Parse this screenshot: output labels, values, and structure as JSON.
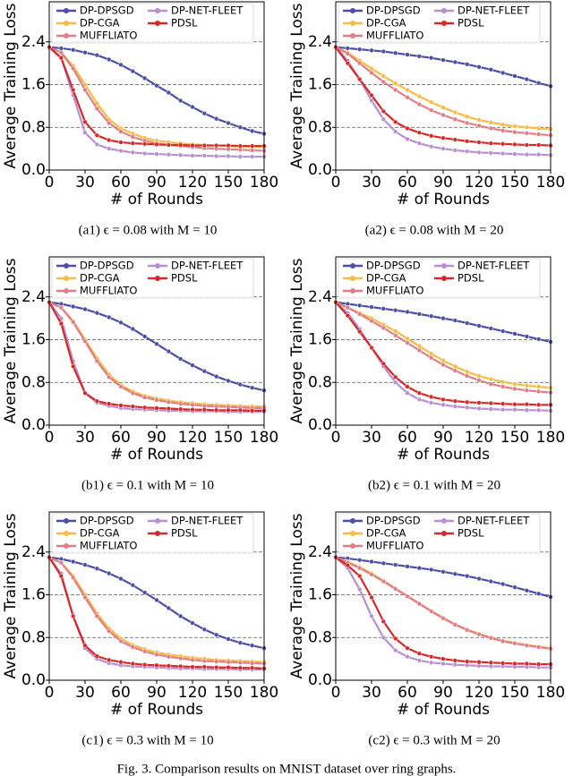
{
  "caption": "Fig. 3. Comparison results on MNIST dataset over ring graphs.",
  "chart_data": [
    {
      "type": "line",
      "caption": "(a1) ϵ = 0.08 with M = 10",
      "x_label": "# of Rounds",
      "y_label": "Average Training Loss",
      "x": [
        0,
        10,
        20,
        30,
        40,
        50,
        60,
        70,
        80,
        90,
        100,
        110,
        120,
        130,
        140,
        150,
        160,
        170,
        180
      ],
      "xlim": [
        0,
        180
      ],
      "xticks": [
        0,
        30,
        60,
        90,
        120,
        150,
        180
      ],
      "ylim": [
        0,
        3.15
      ],
      "yticks": [
        {
          "value": 0,
          "label": "0.0"
        },
        0.8,
        1.6,
        2.4
      ],
      "grid": true,
      "legend": "upper left",
      "series": [
        {
          "name": "DP-DPSGD",
          "color": "#4b4fa6",
          "values": [
            2.3,
            2.28,
            2.25,
            2.2,
            2.15,
            2.07,
            1.97,
            1.85,
            1.72,
            1.58,
            1.45,
            1.3,
            1.18,
            1.06,
            0.96,
            0.88,
            0.8,
            0.73,
            0.68
          ]
        },
        {
          "name": "DP-CGA",
          "color": "#f5bb45",
          "values": [
            2.3,
            2.2,
            1.95,
            1.6,
            1.25,
            0.95,
            0.78,
            0.68,
            0.6,
            0.55,
            0.52,
            0.5,
            0.48,
            0.47,
            0.46,
            0.45,
            0.44,
            0.44,
            0.43
          ]
        },
        {
          "name": "MUFFLIATO",
          "color": "#e07d86",
          "values": [
            2.3,
            2.2,
            1.9,
            1.5,
            1.15,
            0.88,
            0.72,
            0.62,
            0.55,
            0.5,
            0.47,
            0.45,
            0.43,
            0.41,
            0.4,
            0.39,
            0.38,
            0.37,
            0.36
          ]
        },
        {
          "name": "DP-NET-FLEET",
          "color": "#b890d2",
          "values": [
            2.3,
            2.1,
            1.4,
            0.7,
            0.48,
            0.4,
            0.36,
            0.33,
            0.31,
            0.3,
            0.29,
            0.28,
            0.27,
            0.27,
            0.26,
            0.26,
            0.25,
            0.25,
            0.25
          ]
        },
        {
          "name": "PDSL",
          "color": "#d42a2a",
          "values": [
            2.3,
            2.1,
            1.5,
            0.9,
            0.65,
            0.56,
            0.52,
            0.5,
            0.49,
            0.48,
            0.47,
            0.47,
            0.46,
            0.46,
            0.46,
            0.46,
            0.45,
            0.45,
            0.45
          ]
        }
      ]
    },
    {
      "type": "line",
      "caption": "(a2) ϵ = 0.08 with M = 20",
      "x_label": "# of Rounds",
      "y_label": "Average Training Loss",
      "x": [
        0,
        10,
        20,
        30,
        40,
        50,
        60,
        70,
        80,
        90,
        100,
        110,
        120,
        130,
        140,
        150,
        160,
        170,
        180
      ],
      "xlim": [
        0,
        180
      ],
      "xticks": [
        0,
        30,
        60,
        90,
        120,
        150,
        180
      ],
      "ylim": [
        0,
        3.15
      ],
      "yticks": [
        {
          "value": 0,
          "label": "0.0"
        },
        0.8,
        1.6,
        2.4
      ],
      "grid": true,
      "legend": "upper left",
      "series": [
        {
          "name": "DP-DPSGD",
          "color": "#4b4fa6",
          "values": [
            2.3,
            2.28,
            2.26,
            2.24,
            2.22,
            2.19,
            2.16,
            2.13,
            2.1,
            2.06,
            2.02,
            1.98,
            1.93,
            1.88,
            1.82,
            1.76,
            1.7,
            1.63,
            1.57
          ]
        },
        {
          "name": "DP-CGA",
          "color": "#f5bb45",
          "values": [
            2.3,
            2.2,
            2.05,
            1.9,
            1.76,
            1.62,
            1.5,
            1.38,
            1.27,
            1.17,
            1.08,
            1.0,
            0.94,
            0.89,
            0.85,
            0.82,
            0.8,
            0.78,
            0.77
          ]
        },
        {
          "name": "MUFFLIATO",
          "color": "#e07d86",
          "values": [
            2.3,
            2.18,
            2.0,
            1.82,
            1.65,
            1.5,
            1.36,
            1.23,
            1.12,
            1.03,
            0.95,
            0.88,
            0.83,
            0.78,
            0.74,
            0.71,
            0.69,
            0.67,
            0.65
          ]
        },
        {
          "name": "DP-NET-FLEET",
          "color": "#b890d2",
          "values": [
            2.3,
            2.05,
            1.7,
            1.3,
            0.95,
            0.72,
            0.58,
            0.5,
            0.44,
            0.4,
            0.37,
            0.35,
            0.33,
            0.32,
            0.31,
            0.3,
            0.29,
            0.29,
            0.28
          ]
        },
        {
          "name": "PDSL",
          "color": "#d42a2a",
          "values": [
            2.3,
            2.0,
            1.7,
            1.4,
            1.1,
            0.9,
            0.78,
            0.7,
            0.64,
            0.6,
            0.57,
            0.54,
            0.52,
            0.5,
            0.49,
            0.48,
            0.47,
            0.47,
            0.46
          ]
        }
      ]
    },
    {
      "type": "line",
      "caption": "(b1) ϵ = 0.1 with M = 10",
      "x_label": "# of Rounds",
      "y_label": "Average Training Loss",
      "x": [
        0,
        10,
        20,
        30,
        40,
        50,
        60,
        70,
        80,
        90,
        100,
        110,
        120,
        130,
        140,
        150,
        160,
        170,
        180
      ],
      "xlim": [
        0,
        180
      ],
      "xticks": [
        0,
        30,
        60,
        90,
        120,
        150,
        180
      ],
      "ylim": [
        0,
        3.15
      ],
      "yticks": [
        {
          "value": 0,
          "label": "0.0"
        },
        0.8,
        1.6,
        2.4
      ],
      "grid": true,
      "legend": "upper left",
      "series": [
        {
          "name": "DP-DPSGD",
          "color": "#4b4fa6",
          "values": [
            2.3,
            2.27,
            2.22,
            2.17,
            2.1,
            2.02,
            1.92,
            1.8,
            1.66,
            1.52,
            1.38,
            1.24,
            1.12,
            1.01,
            0.91,
            0.83,
            0.76,
            0.7,
            0.65
          ]
        },
        {
          "name": "DP-CGA",
          "color": "#f5bb45",
          "values": [
            2.3,
            2.2,
            1.95,
            1.6,
            1.25,
            0.95,
            0.75,
            0.63,
            0.55,
            0.5,
            0.46,
            0.43,
            0.41,
            0.39,
            0.38,
            0.37,
            0.36,
            0.35,
            0.35
          ]
        },
        {
          "name": "MUFFLIATO",
          "color": "#e07d86",
          "values": [
            2.3,
            2.2,
            1.93,
            1.57,
            1.2,
            0.9,
            0.72,
            0.6,
            0.52,
            0.47,
            0.43,
            0.4,
            0.38,
            0.36,
            0.35,
            0.34,
            0.33,
            0.32,
            0.32
          ]
        },
        {
          "name": "DP-NET-FLEET",
          "color": "#b890d2",
          "values": [
            2.3,
            2.0,
            1.2,
            0.6,
            0.42,
            0.36,
            0.32,
            0.3,
            0.29,
            0.28,
            0.27,
            0.27,
            0.26,
            0.26,
            0.26,
            0.25,
            0.25,
            0.25,
            0.25
          ]
        },
        {
          "name": "PDSL",
          "color": "#d42a2a",
          "values": [
            2.3,
            1.9,
            1.1,
            0.6,
            0.45,
            0.4,
            0.37,
            0.35,
            0.33,
            0.32,
            0.31,
            0.3,
            0.29,
            0.29,
            0.28,
            0.28,
            0.28,
            0.27,
            0.27
          ]
        }
      ]
    },
    {
      "type": "line",
      "caption": "(b2) ϵ = 0.1 with M = 20",
      "x_label": "# of Rounds",
      "y_label": "Average Training Loss",
      "x": [
        0,
        10,
        20,
        30,
        40,
        50,
        60,
        70,
        80,
        90,
        100,
        110,
        120,
        130,
        140,
        150,
        160,
        170,
        180
      ],
      "xlim": [
        0,
        180
      ],
      "xticks": [
        0,
        30,
        60,
        90,
        120,
        150,
        180
      ],
      "ylim": [
        0,
        3.15
      ],
      "yticks": [
        {
          "value": 0,
          "label": "0.0"
        },
        0.8,
        1.6,
        2.4
      ],
      "grid": true,
      "legend": "upper left",
      "series": [
        {
          "name": "DP-DPSGD",
          "color": "#4b4fa6",
          "values": [
            2.3,
            2.27,
            2.24,
            2.21,
            2.18,
            2.15,
            2.12,
            2.08,
            2.04,
            2.0,
            1.96,
            1.91,
            1.86,
            1.81,
            1.76,
            1.71,
            1.66,
            1.61,
            1.56
          ]
        },
        {
          "name": "DP-CGA",
          "color": "#f5bb45",
          "values": [
            2.3,
            2.2,
            2.1,
            2.0,
            1.88,
            1.76,
            1.62,
            1.48,
            1.34,
            1.21,
            1.1,
            1.0,
            0.92,
            0.86,
            0.81,
            0.77,
            0.74,
            0.72,
            0.7
          ]
        },
        {
          "name": "MUFFLIATO",
          "color": "#e07d86",
          "values": [
            2.3,
            2.2,
            2.08,
            1.95,
            1.82,
            1.68,
            1.54,
            1.4,
            1.26,
            1.13,
            1.02,
            0.92,
            0.84,
            0.77,
            0.72,
            0.68,
            0.65,
            0.63,
            0.61
          ]
        },
        {
          "name": "DP-NET-FLEET",
          "color": "#b890d2",
          "values": [
            2.3,
            2.1,
            1.8,
            1.45,
            1.1,
            0.8,
            0.6,
            0.48,
            0.42,
            0.38,
            0.35,
            0.33,
            0.31,
            0.3,
            0.29,
            0.29,
            0.28,
            0.28,
            0.27
          ]
        },
        {
          "name": "PDSL",
          "color": "#d42a2a",
          "values": [
            2.3,
            2.05,
            1.75,
            1.45,
            1.15,
            0.9,
            0.72,
            0.6,
            0.53,
            0.48,
            0.45,
            0.43,
            0.42,
            0.41,
            0.4,
            0.39,
            0.39,
            0.38,
            0.38
          ]
        }
      ]
    },
    {
      "type": "line",
      "caption": "(c1) ϵ = 0.3 with M = 10",
      "x_label": "# of Rounds",
      "y_label": "Average Training Loss",
      "x": [
        0,
        10,
        20,
        30,
        40,
        50,
        60,
        70,
        80,
        90,
        100,
        110,
        120,
        130,
        140,
        150,
        160,
        170,
        180
      ],
      "xlim": [
        0,
        180
      ],
      "xticks": [
        0,
        30,
        60,
        90,
        120,
        150,
        180
      ],
      "ylim": [
        0,
        3.15
      ],
      "yticks": [
        {
          "value": 0,
          "label": "0.0"
        },
        0.8,
        1.6,
        2.4
      ],
      "grid": true,
      "legend": "upper left",
      "series": [
        {
          "name": "DP-DPSGD",
          "color": "#4b4fa6",
          "values": [
            2.3,
            2.27,
            2.22,
            2.16,
            2.09,
            2.0,
            1.9,
            1.78,
            1.64,
            1.5,
            1.35,
            1.2,
            1.07,
            0.95,
            0.85,
            0.77,
            0.7,
            0.65,
            0.6
          ]
        },
        {
          "name": "DP-CGA",
          "color": "#f5bb45",
          "values": [
            2.3,
            2.2,
            1.95,
            1.6,
            1.25,
            0.97,
            0.78,
            0.66,
            0.58,
            0.52,
            0.48,
            0.45,
            0.42,
            0.4,
            0.38,
            0.37,
            0.36,
            0.35,
            0.34
          ]
        },
        {
          "name": "MUFFLIATO",
          "color": "#e07d86",
          "values": [
            2.3,
            2.2,
            1.92,
            1.55,
            1.2,
            0.92,
            0.73,
            0.62,
            0.54,
            0.48,
            0.44,
            0.41,
            0.38,
            0.36,
            0.35,
            0.34,
            0.33,
            0.32,
            0.31
          ]
        },
        {
          "name": "DP-NET-FLEET",
          "color": "#b890d2",
          "values": [
            2.3,
            2.0,
            1.2,
            0.6,
            0.4,
            0.32,
            0.28,
            0.26,
            0.25,
            0.24,
            0.23,
            0.22,
            0.22,
            0.21,
            0.21,
            0.21,
            0.2,
            0.2,
            0.2
          ]
        },
        {
          "name": "PDSL",
          "color": "#d42a2a",
          "values": [
            2.3,
            1.95,
            1.2,
            0.65,
            0.45,
            0.38,
            0.34,
            0.31,
            0.29,
            0.28,
            0.27,
            0.26,
            0.25,
            0.25,
            0.24,
            0.24,
            0.23,
            0.23,
            0.22
          ]
        }
      ]
    },
    {
      "type": "line",
      "caption": "(c2) ϵ = 0.3 with M = 20",
      "x_label": "# of Rounds",
      "y_label": "Average Training Loss",
      "x": [
        0,
        10,
        20,
        30,
        40,
        50,
        60,
        70,
        80,
        90,
        100,
        110,
        120,
        130,
        140,
        150,
        160,
        170,
        180
      ],
      "xlim": [
        0,
        180
      ],
      "xticks": [
        0,
        30,
        60,
        90,
        120,
        150,
        180
      ],
      "ylim": [
        0,
        3.15
      ],
      "yticks": [
        {
          "value": 0,
          "label": "0.0"
        },
        0.8,
        1.6,
        2.4
      ],
      "grid": true,
      "legend": "upper left",
      "series": [
        {
          "name": "DP-DPSGD",
          "color": "#4b4fa6",
          "values": [
            2.3,
            2.28,
            2.25,
            2.22,
            2.19,
            2.16,
            2.13,
            2.1,
            2.07,
            2.03,
            1.99,
            1.95,
            1.9,
            1.85,
            1.8,
            1.74,
            1.68,
            1.62,
            1.56
          ]
        },
        {
          "name": "DP-CGA",
          "color": "#f5bb45",
          "values": [
            2.3,
            2.22,
            2.12,
            2.0,
            1.86,
            1.72,
            1.58,
            1.44,
            1.3,
            1.17,
            1.05,
            0.95,
            0.87,
            0.8,
            0.74,
            0.7,
            0.66,
            0.63,
            0.6
          ]
        },
        {
          "name": "MUFFLIATO",
          "color": "#e07d86",
          "values": [
            2.3,
            2.2,
            2.1,
            1.98,
            1.85,
            1.71,
            1.57,
            1.43,
            1.29,
            1.16,
            1.04,
            0.94,
            0.86,
            0.79,
            0.73,
            0.69,
            0.65,
            0.62,
            0.59
          ]
        },
        {
          "name": "DP-NET-FLEET",
          "color": "#b890d2",
          "values": [
            2.3,
            2.1,
            1.7,
            1.2,
            0.8,
            0.56,
            0.44,
            0.37,
            0.33,
            0.31,
            0.29,
            0.28,
            0.27,
            0.26,
            0.26,
            0.25,
            0.25,
            0.24,
            0.24
          ]
        },
        {
          "name": "PDSL",
          "color": "#d42a2a",
          "values": [
            2.3,
            2.15,
            1.95,
            1.55,
            1.1,
            0.78,
            0.6,
            0.5,
            0.44,
            0.4,
            0.37,
            0.35,
            0.34,
            0.33,
            0.32,
            0.31,
            0.31,
            0.3,
            0.3
          ]
        }
      ]
    }
  ]
}
